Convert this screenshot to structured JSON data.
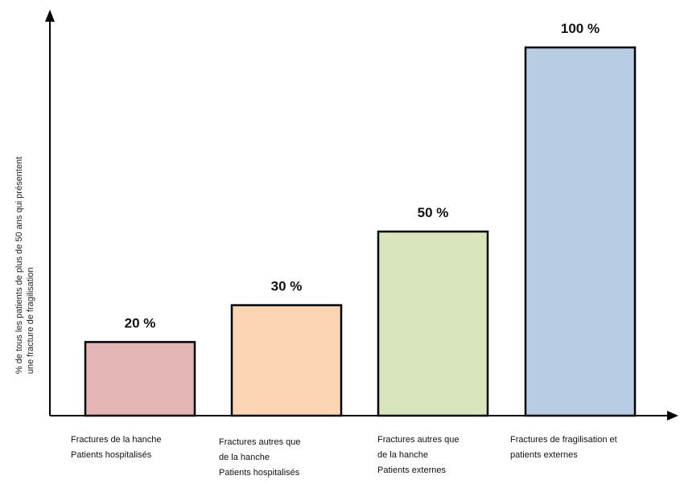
{
  "chart_data": {
    "type": "bar",
    "categories": [
      [
        "Fractures de la hanche",
        "Patients hospitalisés"
      ],
      [
        "Fractures autres que",
        "de la hanche",
        "Patients hospitalisés"
      ],
      [
        "Fractures autres que",
        "de la hanche",
        "Patients externes"
      ],
      [
        "Fractures de fragilisation et",
        "patients externes"
      ]
    ],
    "values": [
      20,
      30,
      50,
      100
    ],
    "data_labels": [
      "20 %",
      "30 %",
      "50 %",
      "100 %"
    ],
    "colors": [
      "#e4b5b5",
      "#fbd5b3",
      "#d8e4bc",
      "#b8cce4"
    ],
    "edge_color": "#000000",
    "ylabel_lines": [
      "% de tous les patients de plus de 50 ans qui présentent",
      "une fracture de fragilisation"
    ],
    "xlabel": "",
    "title": "",
    "ylim": [
      0,
      100
    ],
    "grid": false,
    "y_ticks": false
  }
}
